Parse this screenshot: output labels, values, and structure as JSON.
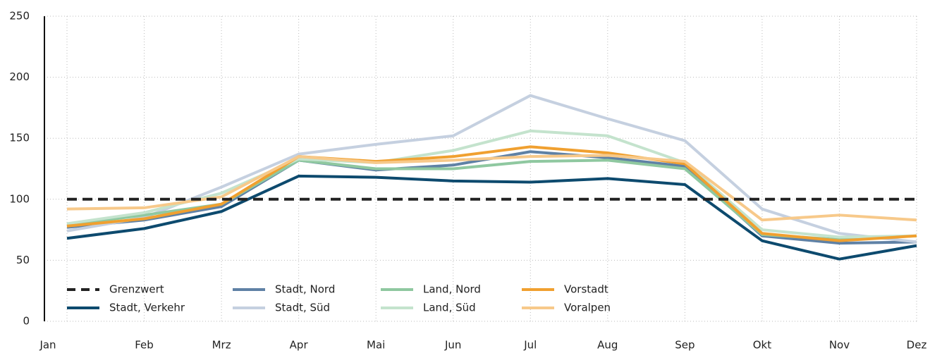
{
  "chart_data": {
    "type": "line",
    "categories": [
      "Jan",
      "Feb",
      "Mrz",
      "Apr",
      "Mai",
      "Jun",
      "Jul",
      "Aug",
      "Sep",
      "Okt",
      "Nov",
      "Dez"
    ],
    "ylim": [
      0,
      250
    ],
    "yticks": [
      0,
      50,
      100,
      150,
      200,
      250
    ],
    "grid": true,
    "series": [
      {
        "name": "Grenzwert",
        "color": "#222222",
        "dashed": true,
        "values": [
          100,
          100,
          100,
          100,
          100,
          100,
          100,
          100,
          100,
          100,
          100,
          100
        ]
      },
      {
        "name": "Stadt, Verkehr",
        "color": "#0d4a6e",
        "values": [
          68,
          76,
          90,
          119,
          118,
          115,
          114,
          117,
          112,
          66,
          51,
          62
        ]
      },
      {
        "name": "Stadt, Nord",
        "color": "#5f81a5",
        "values": [
          77,
          83,
          94,
          132,
          124,
          128,
          139,
          134,
          127,
          70,
          64,
          65
        ]
      },
      {
        "name": "Stadt, Süd",
        "color": "#c5d0e0",
        "values": [
          74,
          85,
          110,
          137,
          145,
          152,
          185,
          166,
          148,
          92,
          72,
          65
        ]
      },
      {
        "name": "Land, Nord",
        "color": "#8fc8a0",
        "values": [
          79,
          87,
          96,
          132,
          125,
          125,
          131,
          132,
          125,
          71,
          67,
          70
        ]
      },
      {
        "name": "Land, Süd",
        "color": "#c4e3cd",
        "values": [
          80,
          89,
          105,
          133,
          130,
          140,
          156,
          152,
          130,
          75,
          69,
          70
        ]
      },
      {
        "name": "Vorstadt",
        "color": "#f0a030",
        "values": [
          78,
          84,
          96,
          135,
          131,
          135,
          143,
          138,
          129,
          72,
          66,
          70
        ]
      },
      {
        "name": "Voralpen",
        "color": "#f7c98a",
        "values": [
          92,
          93,
          102,
          135,
          130,
          132,
          135,
          136,
          131,
          83,
          87,
          83
        ]
      }
    ]
  }
}
